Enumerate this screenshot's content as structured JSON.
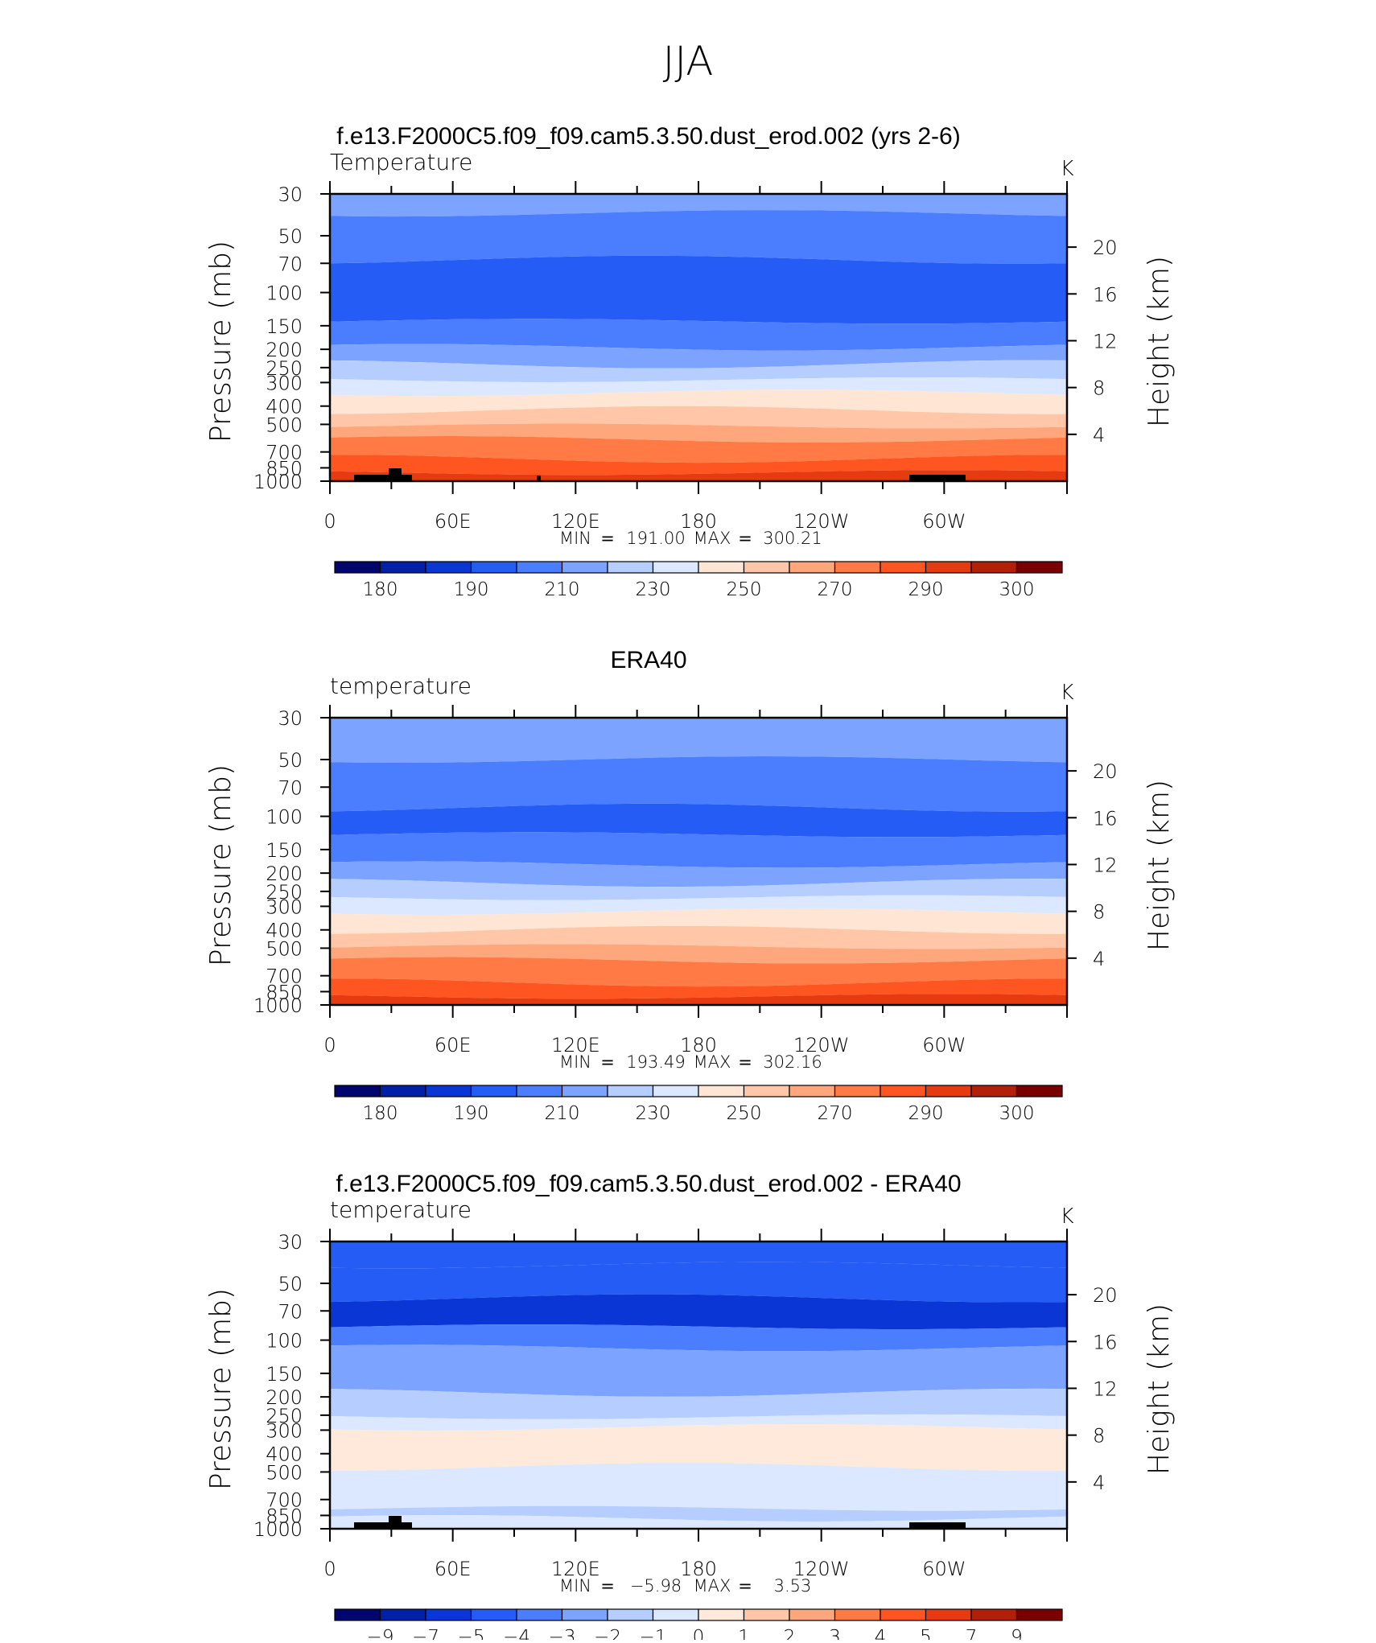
{
  "super_title": "JJA",
  "chart_data": [
    {
      "type": "heatmap",
      "title": "f.e13.F2000C5.f09_f09.cam5.3.50.dust_erod.002 (yrs 2-6)",
      "left_label": "Temperature",
      "right_label": "K",
      "ylabel": "Pressure  (mb)",
      "ylabel_right": "Height  (km)",
      "x_ticks": [
        "0",
        "60E",
        "120E",
        "180",
        "120W",
        "60W"
      ],
      "y_ticks": [
        "30",
        "50",
        "70",
        "100",
        "150",
        "200",
        "250",
        "300",
        "400",
        "500",
        "700",
        "850",
        "1000"
      ],
      "y_ticks_right": [
        "20",
        "16",
        "12",
        "8",
        "4"
      ],
      "stats": {
        "min_label": "MIN",
        "min": "191.00",
        "max_label": "MAX",
        "max": "300.21"
      },
      "colorbar_labels": [
        "180",
        "190",
        "210",
        "230",
        "250",
        "270",
        "290",
        "300"
      ],
      "bands": [
        {
          "p_top": 30,
          "p_bottom": 38,
          "color": "#7ba3ff"
        },
        {
          "p_top": 38,
          "p_bottom": 67,
          "color": "#4a7dff"
        },
        {
          "p_top": 67,
          "p_bottom": 142,
          "color": "#245cf5"
        },
        {
          "p_top": 142,
          "p_bottom": 195,
          "color": "#4a7dff"
        },
        {
          "p_top": 195,
          "p_bottom": 240,
          "color": "#7ba3ff"
        },
        {
          "p_top": 240,
          "p_bottom": 290,
          "color": "#b5cdff"
        },
        {
          "p_top": 290,
          "p_bottom": 340,
          "color": "#dbe8ff"
        },
        {
          "p_top": 340,
          "p_bottom": 420,
          "color": "#ffe6d4"
        },
        {
          "p_top": 420,
          "p_bottom": 510,
          "color": "#ffc7a7"
        },
        {
          "p_top": 510,
          "p_bottom": 600,
          "color": "#ffa77c"
        },
        {
          "p_top": 600,
          "p_bottom": 760,
          "color": "#ff7a45"
        },
        {
          "p_top": 760,
          "p_bottom": 900,
          "color": "#ff5520"
        },
        {
          "p_top": 900,
          "p_bottom": 1000,
          "color": "#e63a10"
        }
      ],
      "terrain": true
    },
    {
      "type": "heatmap",
      "title": "ERA40",
      "left_label": "temperature",
      "right_label": "K",
      "ylabel": "Pressure  (mb)",
      "ylabel_right": "Height  (km)",
      "x_ticks": [
        "0",
        "60E",
        "120E",
        "180",
        "120W",
        "60W"
      ],
      "y_ticks": [
        "30",
        "50",
        "70",
        "100",
        "150",
        "200",
        "250",
        "300",
        "400",
        "500",
        "700",
        "850",
        "1000"
      ],
      "y_ticks_right": [
        "20",
        "16",
        "12",
        "8",
        "4"
      ],
      "stats": {
        "min_label": "MIN",
        "min": "193.49",
        "max_label": "MAX",
        "max": "302.16"
      },
      "colorbar_labels": [
        "180",
        "190",
        "210",
        "230",
        "250",
        "270",
        "290",
        "300"
      ],
      "bands": [
        {
          "p_top": 30,
          "p_bottom": 50,
          "color": "#7ba3ff"
        },
        {
          "p_top": 50,
          "p_bottom": 90,
          "color": "#4a7dff"
        },
        {
          "p_top": 90,
          "p_bottom": 125,
          "color": "#245cf5"
        },
        {
          "p_top": 125,
          "p_bottom": 180,
          "color": "#4a7dff"
        },
        {
          "p_top": 180,
          "p_bottom": 225,
          "color": "#7ba3ff"
        },
        {
          "p_top": 225,
          "p_bottom": 270,
          "color": "#b5cdff"
        },
        {
          "p_top": 270,
          "p_bottom": 320,
          "color": "#dbe8ff"
        },
        {
          "p_top": 320,
          "p_bottom": 400,
          "color": "#ffe6d4"
        },
        {
          "p_top": 400,
          "p_bottom": 490,
          "color": "#ffc7a7"
        },
        {
          "p_top": 490,
          "p_bottom": 580,
          "color": "#ffa77c"
        },
        {
          "p_top": 580,
          "p_bottom": 760,
          "color": "#ff7a45"
        },
        {
          "p_top": 760,
          "p_bottom": 900,
          "color": "#ff5520"
        },
        {
          "p_top": 900,
          "p_bottom": 1000,
          "color": "#e63a10"
        }
      ],
      "terrain": false
    },
    {
      "type": "heatmap",
      "title": "f.e13.F2000C5.f09_f09.cam5.3.50.dust_erod.002 - ERA40",
      "left_label": "temperature",
      "right_label": "K",
      "ylabel": "Pressure  (mb)",
      "ylabel_right": "Height  (km)",
      "x_ticks": [
        "0",
        "60E",
        "120E",
        "180",
        "120W",
        "60W"
      ],
      "y_ticks": [
        "30",
        "50",
        "70",
        "100",
        "150",
        "200",
        "250",
        "300",
        "400",
        "500",
        "700",
        "850",
        "1000"
      ],
      "y_ticks_right": [
        "20",
        "16",
        "12",
        "8",
        "4"
      ],
      "stats": {
        "min_label": "MIN",
        "min": "−5.98",
        "max_label": "MAX",
        "max": "3.53"
      },
      "colorbar_labels": [
        "−9",
        "−7",
        "−5",
        "−4",
        "−3",
        "−2",
        "−1",
        "0",
        "1",
        "2",
        "3",
        "4",
        "5",
        "7",
        "9"
      ],
      "bands": [
        {
          "p_top": 30,
          "p_bottom": 40,
          "color": "#245cf5"
        },
        {
          "p_top": 40,
          "p_bottom": 60,
          "color": "#245cf5"
        },
        {
          "p_top": 60,
          "p_bottom": 85,
          "color": "#0a36d6"
        },
        {
          "p_top": 85,
          "p_bottom": 110,
          "color": "#4a7dff"
        },
        {
          "p_top": 110,
          "p_bottom": 190,
          "color": "#7ba3ff"
        },
        {
          "p_top": 190,
          "p_bottom": 255,
          "color": "#b5cdff"
        },
        {
          "p_top": 255,
          "p_bottom": 290,
          "color": "#dbe8ff"
        },
        {
          "p_top": 290,
          "p_bottom": 470,
          "color": "#ffe9da"
        },
        {
          "p_top": 470,
          "p_bottom": 780,
          "color": "#dbe8ff"
        },
        {
          "p_top": 780,
          "p_bottom": 880,
          "color": "#b5cdff"
        },
        {
          "p_top": 880,
          "p_bottom": 1000,
          "color": "#dbe8ff"
        }
      ],
      "terrain": true
    }
  ],
  "palettes": {
    "temperature": [
      "#00066e",
      "#0020a8",
      "#0a36d6",
      "#245cf5",
      "#4a7dff",
      "#7ba3ff",
      "#b5cdff",
      "#dbe8ff",
      "#ffe6d4",
      "#ffc7a7",
      "#ffa77c",
      "#ff7a45",
      "#ff5520",
      "#e63a10",
      "#b3200a",
      "#7a0000"
    ],
    "difference": [
      "#00066e",
      "#0020a8",
      "#0a36d6",
      "#245cf5",
      "#4a7dff",
      "#7ba3ff",
      "#b5cdff",
      "#dbe8ff",
      "#ffe9da",
      "#ffc7a7",
      "#ffa77c",
      "#ff7a45",
      "#ff5520",
      "#e63a10",
      "#b3200a",
      "#7a0000"
    ]
  }
}
